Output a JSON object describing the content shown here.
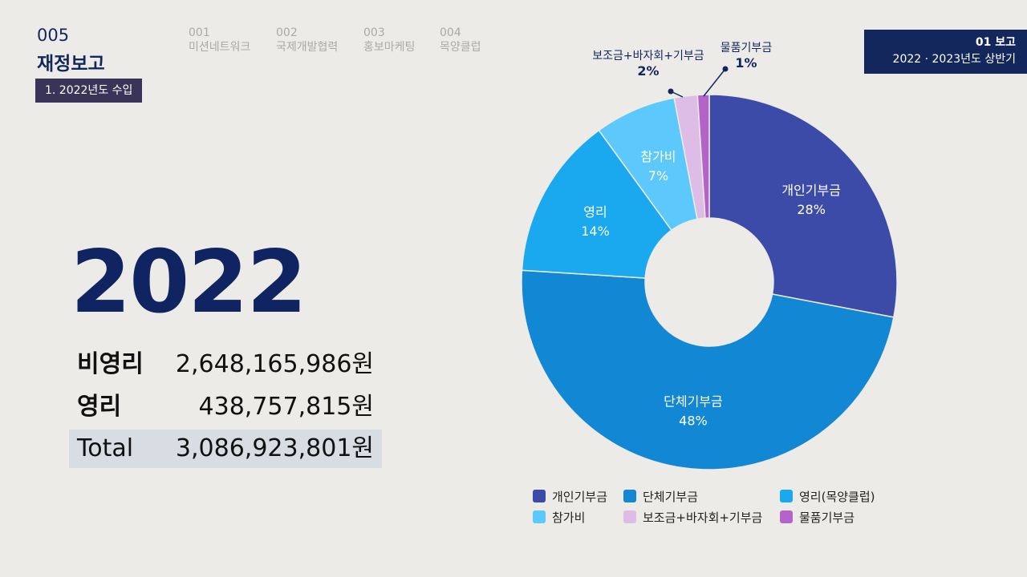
{
  "header": {
    "section_num": "005",
    "section_title": "재정보고",
    "subtag": "1. 2022년도 수입",
    "nav": [
      {
        "num": "001",
        "label": "미션네트워크"
      },
      {
        "num": "002",
        "label": "국제개발협력"
      },
      {
        "num": "003",
        "label": "홍보마케팅"
      },
      {
        "num": "004",
        "label": "목양클럽"
      }
    ],
    "report_line1": "01 보고",
    "report_line2": "2022 · 2023년도 상반기"
  },
  "summary": {
    "year": "2022",
    "rows": [
      {
        "label": "비영리",
        "value": "2,648,165,986원"
      },
      {
        "label": "영리",
        "value": "438,757,815원"
      },
      {
        "label": "Total",
        "value": "3,086,923,801원"
      }
    ]
  },
  "colors": {
    "navy": "#14275C",
    "s1": "#3C4BA8",
    "s2": "#1287D4",
    "s3": "#1AA8EF",
    "s4": "#5CC8FB",
    "s5": "#DDBDE6",
    "s6": "#B464C8"
  },
  "chart_data": {
    "type": "pie",
    "donut": true,
    "slices": [
      {
        "label": "개인기부금",
        "value": 28,
        "display": "28%",
        "color": "#3C4BA8"
      },
      {
        "label": "단체기부금",
        "value": 48,
        "display": "48%",
        "color": "#1287D4"
      },
      {
        "label": "영리",
        "value": 14,
        "display": "14%",
        "color": "#1AA8EF"
      },
      {
        "label": "참가비",
        "value": 7,
        "display": "7%",
        "color": "#5CC8FB"
      },
      {
        "label": "보조금+바자회+기부금",
        "value": 2,
        "display": "2%",
        "color": "#DDBDE6"
      },
      {
        "label": "물품기부금",
        "value": 1,
        "display": "1%",
        "color": "#B464C8"
      }
    ],
    "legend": [
      {
        "label": "개인기부금",
        "color": "#3C4BA8"
      },
      {
        "label": "단체기부금",
        "color": "#1287D4"
      },
      {
        "label": "영리(목양클럽)",
        "color": "#1AA8EF"
      },
      {
        "label": "참가비",
        "color": "#5CC8FB"
      },
      {
        "label": "보조금+바자회+기부금",
        "color": "#DDBDE6"
      },
      {
        "label": "물품기부금",
        "color": "#B464C8"
      }
    ]
  }
}
